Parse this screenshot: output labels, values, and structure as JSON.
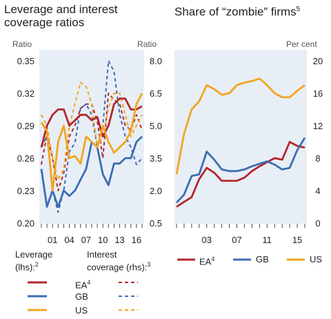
{
  "colors": {
    "EA": "#b2262c",
    "GB": "#3a6db3",
    "US": "#f2a51f",
    "panel_bg": "#e8eef5"
  },
  "left": {
    "title_l1": "Leverage and interest",
    "title_l2": "coverage ratios",
    "left_unit": "Ratio",
    "right_unit": "Ratio",
    "left_ticks": [
      "0.35",
      "0.32",
      "0.29",
      "0.26",
      "0.23",
      "0.20"
    ],
    "right_ticks": [
      "8.0",
      "6.5",
      "5.0",
      "3.5",
      "2.0",
      "0.5"
    ],
    "x_ticks": [
      "01",
      "04",
      "07",
      "10",
      "13",
      "16"
    ]
  },
  "right": {
    "title_text": "Share of “zombie” firms",
    "title_sup": "5",
    "unit": "Per cent",
    "y_ticks": [
      "20",
      "16",
      "12",
      "8",
      "4",
      "0"
    ],
    "x_ticks": [
      "03",
      "07",
      "11",
      "15"
    ]
  },
  "legend": {
    "leverage_l1": "Leverage",
    "leverage_l2": "(lhs):",
    "leverage_sup": "2",
    "coverage_l1": "Interest",
    "coverage_l2": "coverage (rhs):",
    "coverage_sup": "3",
    "ea": "EA",
    "ea_sup": "4",
    "gb": "GB",
    "us": "US",
    "right_ea": "EA",
    "right_ea_sup": "4",
    "right_gb": "GB",
    "right_us": "US"
  },
  "chart_data": [
    {
      "type": "line",
      "title": "Leverage and interest coverage ratios",
      "x": [
        1999,
        2000,
        2001,
        2002,
        2003,
        2004,
        2005,
        2006,
        2007,
        2008,
        2009,
        2010,
        2011,
        2012,
        2013,
        2014,
        2015,
        2016,
        2017
      ],
      "y_left_lim": [
        0.2,
        0.35
      ],
      "y_right_lim": [
        0.5,
        8.0
      ],
      "series": [
        {
          "name": "EA",
          "axis": "left",
          "style": "solid",
          "values": [
            0.27,
            0.29,
            0.3,
            0.305,
            0.305,
            0.29,
            0.295,
            0.3,
            0.3,
            0.295,
            0.298,
            0.28,
            0.29,
            0.31,
            0.315,
            0.315,
            0.305,
            0.305,
            0.308
          ]
        },
        {
          "name": "GB",
          "axis": "left",
          "style": "solid",
          "values": [
            0.25,
            0.215,
            0.23,
            0.215,
            0.23,
            0.225,
            0.23,
            0.24,
            0.25,
            0.275,
            0.27,
            0.245,
            0.235,
            0.255,
            0.255,
            0.26,
            0.26,
            0.275,
            0.28
          ]
        },
        {
          "name": "US",
          "axis": "left",
          "style": "solid",
          "values": [
            0.293,
            0.285,
            0.23,
            0.275,
            0.29,
            0.26,
            0.262,
            0.255,
            0.28,
            0.275,
            0.27,
            0.29,
            0.275,
            0.265,
            0.27,
            0.275,
            0.285,
            0.31,
            0.32
          ]
        },
        {
          "name": "EA",
          "axis": "right",
          "style": "dashed",
          "values": [
            3.2,
            4.6,
            3.5,
            2.0,
            2.8,
            4.5,
            5.0,
            5.8,
            6.0,
            6.0,
            5.2,
            3.5,
            6.5,
            6.2,
            6.0,
            5.0,
            4.8,
            5.5,
            4.8
          ]
        },
        {
          "name": "GB",
          "axis": "right",
          "style": "dashed",
          "values": [
            4.0,
            4.5,
            2.0,
            1.0,
            2.0,
            3.8,
            4.2,
            5.8,
            6.0,
            5.5,
            4.0,
            5.0,
            8.0,
            7.5,
            5.5,
            4.5,
            4.0,
            3.2,
            3.5
          ]
        },
        {
          "name": "US",
          "axis": "right",
          "style": "dashed",
          "values": [
            5.5,
            5.0,
            3.5,
            2.5,
            3.0,
            5.0,
            6.0,
            7.0,
            6.8,
            6.0,
            4.0,
            4.5,
            5.8,
            6.5,
            6.5,
            5.5,
            4.5,
            5.0,
            5.5
          ]
        }
      ]
    },
    {
      "type": "line",
      "title": "Share of “zombie” firms",
      "ylabel": "Per cent",
      "x": [
        1999,
        2000,
        2001,
        2002,
        2003,
        2004,
        2005,
        2006,
        2007,
        2008,
        2009,
        2010,
        2011,
        2012,
        2013,
        2014,
        2015,
        2016
      ],
      "ylim": [
        0,
        20
      ],
      "series": [
        {
          "name": "EA",
          "values": [
            2.0,
            2.6,
            3.2,
            5.4,
            6.8,
            6.2,
            5.2,
            5.2,
            5.2,
            5.6,
            6.4,
            7.0,
            7.5,
            8.0,
            7.8,
            10.0,
            9.5,
            9.3
          ]
        },
        {
          "name": "GB",
          "values": [
            2.5,
            3.5,
            5.8,
            6.0,
            8.8,
            7.8,
            6.6,
            6.4,
            6.4,
            6.6,
            7.0,
            7.3,
            7.6,
            7.2,
            6.6,
            6.8,
            9.0,
            10.5
          ]
        },
        {
          "name": "US",
          "values": [
            6.0,
            11.0,
            14.0,
            15.0,
            17.0,
            16.5,
            15.8,
            16.0,
            17.0,
            17.3,
            17.5,
            17.8,
            17.0,
            16.0,
            15.5,
            15.5,
            16.3,
            17.0
          ]
        }
      ]
    }
  ]
}
